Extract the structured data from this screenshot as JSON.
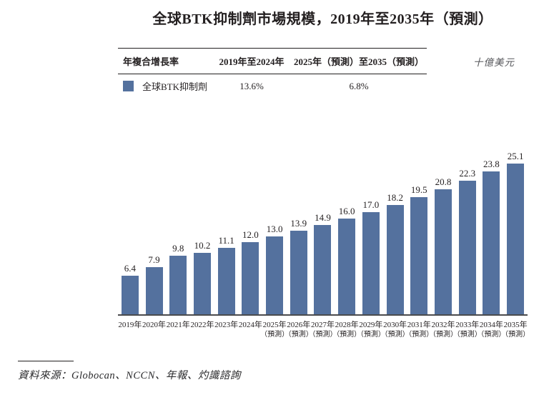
{
  "title": "全球BTK抑制劑市場規模，2019年至2035年（預測）",
  "unit_label": "十億美元",
  "cagr_table": {
    "headers": [
      "年複合增長率",
      "2019年至2024年",
      "2025年（預測）至2035（預測）"
    ],
    "row": {
      "legend_label": "全球BTK抑制劑",
      "cagr_2019_2024": "13.6%",
      "cagr_2025_2035": "6.8%"
    }
  },
  "chart_data": {
    "type": "bar",
    "title": "全球BTK抑制劑市場規模，2019年至2035年（預測）",
    "ylabel": "十億美元",
    "series_name": "全球BTK抑制劑",
    "categories": [
      "2019年",
      "2020年",
      "2021年",
      "2022年",
      "2023年",
      "2024年",
      "2025年",
      "2026年",
      "2027年",
      "2028年",
      "2029年",
      "2030年",
      "2031年",
      "2032年",
      "2033年",
      "2034年",
      "2035年"
    ],
    "category_notes": [
      "",
      "",
      "",
      "",
      "",
      "",
      "（預測）",
      "（預測）",
      "（預測）",
      "（預測）",
      "（預測）",
      "（預測）",
      "（預測）",
      "（預測）",
      "（預測）",
      "（預測）",
      "（預測）"
    ],
    "values": [
      6.4,
      7.9,
      9.8,
      10.2,
      11.1,
      12.0,
      13.0,
      13.9,
      14.9,
      16.0,
      17.0,
      18.2,
      19.5,
      20.8,
      22.3,
      23.8,
      25.1
    ],
    "value_labels": [
      "6.4",
      "7.9",
      "9.8",
      "10.2",
      "11.1",
      "12.0",
      "13.0",
      "13.9",
      "14.9",
      "16.0",
      "17.0",
      "18.2",
      "19.5",
      "20.8",
      "22.3",
      "23.8",
      "25.1"
    ],
    "ylim": [
      0,
      26
    ],
    "grid": false,
    "legend_position": "top-left-table",
    "bar_color": "#54719E"
  },
  "source": "資料來源：Globocan、NCCN、年報、灼識諮詢",
  "colors": {
    "bar": "#54719E",
    "axis": "#4A4B4D",
    "text": "#231F20",
    "muted": "#55565A"
  }
}
